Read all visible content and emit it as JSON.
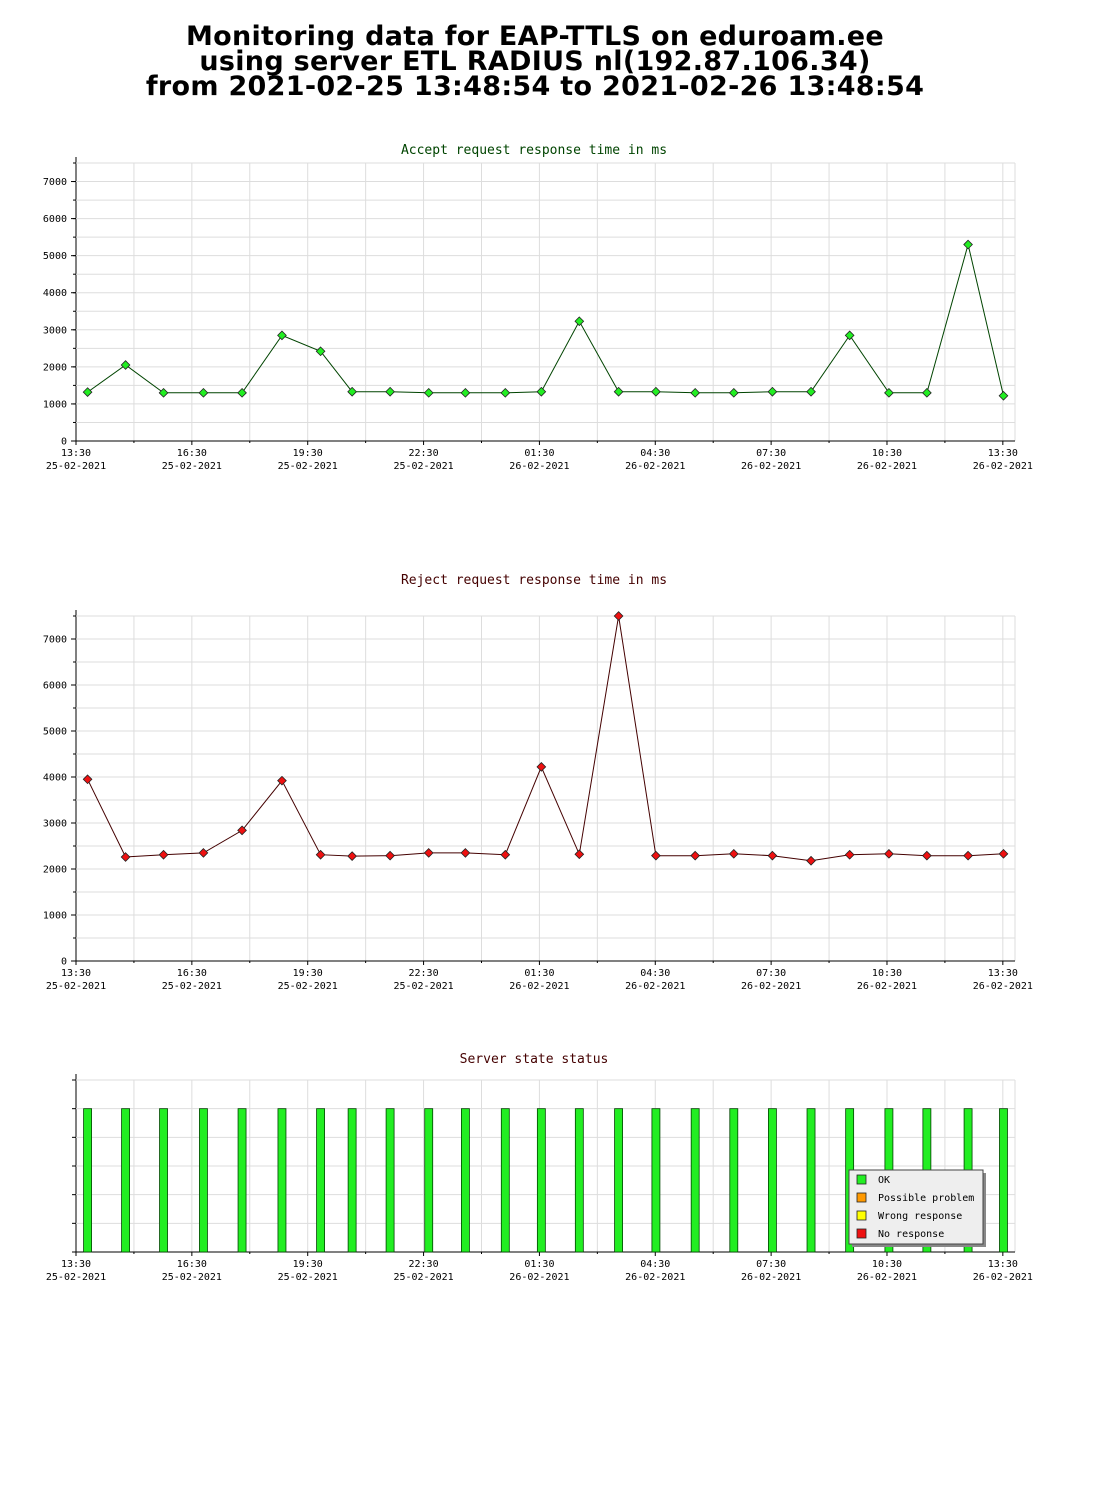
{
  "header": {
    "line1": "Monitoring data for EAP-TTLS on eduroam.ee",
    "line2": "using server ETL RADIUS nl(192.87.106.34)",
    "line3": "from 2021-02-25 13:48:54 to 2021-02-26 13:48:54"
  },
  "x_ticks": [
    {
      "time": "13:30",
      "date": "25-02-2021"
    },
    {
      "time": "16:30",
      "date": "25-02-2021"
    },
    {
      "time": "19:30",
      "date": "25-02-2021"
    },
    {
      "time": "22:30",
      "date": "25-02-2021"
    },
    {
      "time": "01:30",
      "date": "26-02-2021"
    },
    {
      "time": "04:30",
      "date": "26-02-2021"
    },
    {
      "time": "07:30",
      "date": "26-02-2021"
    },
    {
      "time": "10:30",
      "date": "26-02-2021"
    },
    {
      "time": "13:30",
      "date": "26-02-2021"
    }
  ],
  "chart_data": [
    {
      "type": "line",
      "title": "Accept request response time in ms",
      "title_color": "#004400",
      "line_color": "#004400",
      "marker_color": "#22ee22",
      "ylim": [
        0,
        7500
      ],
      "yticks": [
        0,
        1000,
        2000,
        3000,
        4000,
        5000,
        6000,
        7000
      ],
      "grid": true,
      "x": [
        "2021-02-25 13:48",
        "2021-02-25 14:47",
        "2021-02-25 15:46",
        "2021-02-25 16:48",
        "2021-02-25 17:48",
        "2021-02-25 18:50",
        "2021-02-25 19:50",
        "2021-02-25 20:39",
        "2021-02-25 21:38",
        "2021-02-25 22:38",
        "2021-02-25 23:35",
        "2021-02-26 00:37",
        "2021-02-26 01:33",
        "2021-02-26 02:32",
        "2021-02-26 03:33",
        "2021-02-26 04:31",
        "2021-02-26 05:32",
        "2021-02-26 06:32",
        "2021-02-26 07:32",
        "2021-02-26 08:32",
        "2021-02-26 09:32",
        "2021-02-26 10:33",
        "2021-02-26 11:32",
        "2021-02-26 12:36",
        "2021-02-26 13:31"
      ],
      "values": [
        1320,
        2050,
        1300,
        1300,
        1300,
        2850,
        2420,
        1330,
        1330,
        1300,
        1300,
        1300,
        1330,
        3230,
        1330,
        1330,
        1300,
        1300,
        1330,
        1330,
        2850,
        1300,
        1300,
        5300,
        1220
      ]
    },
    {
      "type": "line",
      "title": "Reject request response time in ms",
      "title_color": "#440000",
      "line_color": "#440000",
      "marker_color": "#ee1111",
      "ylim": [
        0,
        7500
      ],
      "yticks": [
        0,
        1000,
        2000,
        3000,
        4000,
        5000,
        6000,
        7000
      ],
      "grid": true,
      "x": [
        "2021-02-25 13:48",
        "2021-02-25 14:47",
        "2021-02-25 15:46",
        "2021-02-25 16:48",
        "2021-02-25 17:48",
        "2021-02-25 18:50",
        "2021-02-25 19:50",
        "2021-02-25 20:39",
        "2021-02-25 21:38",
        "2021-02-25 22:38",
        "2021-02-25 23:35",
        "2021-02-26 00:37",
        "2021-02-26 01:33",
        "2021-02-26 02:32",
        "2021-02-26 03:33",
        "2021-02-26 04:31",
        "2021-02-26 05:32",
        "2021-02-26 06:32",
        "2021-02-26 07:32",
        "2021-02-26 08:32",
        "2021-02-26 09:32",
        "2021-02-26 10:33",
        "2021-02-26 11:32",
        "2021-02-26 12:36",
        "2021-02-26 13:31"
      ],
      "values": [
        3950,
        2260,
        2310,
        2350,
        2840,
        3920,
        2310,
        2280,
        2290,
        2350,
        2350,
        2310,
        4220,
        2320,
        7500,
        2290,
        2290,
        2330,
        2290,
        2180,
        2310,
        2330,
        2290,
        2290,
        2330
      ]
    },
    {
      "type": "bar",
      "title": "Server state status",
      "title_color": "#440000",
      "grid": true,
      "x": [
        "2021-02-25 13:48",
        "2021-02-25 14:47",
        "2021-02-25 15:46",
        "2021-02-25 16:48",
        "2021-02-25 17:48",
        "2021-02-25 18:50",
        "2021-02-25 19:50",
        "2021-02-25 20:39",
        "2021-02-25 21:38",
        "2021-02-25 22:38",
        "2021-02-25 23:35",
        "2021-02-26 00:37",
        "2021-02-26 01:33",
        "2021-02-26 02:32",
        "2021-02-26 03:33",
        "2021-02-26 04:31",
        "2021-02-26 05:32",
        "2021-02-26 06:32",
        "2021-02-26 07:32",
        "2021-02-26 08:32",
        "2021-02-26 09:32",
        "2021-02-26 10:33",
        "2021-02-26 11:32",
        "2021-02-26 12:36",
        "2021-02-26 13:31"
      ],
      "states": [
        "OK",
        "OK",
        "OK",
        "OK",
        "OK",
        "OK",
        "OK",
        "OK",
        "OK",
        "OK",
        "OK",
        "OK",
        "OK",
        "OK",
        "OK",
        "OK",
        "OK",
        "OK",
        "OK",
        "OK",
        "OK",
        "OK",
        "OK",
        "OK",
        "OK"
      ],
      "legend_position": "bottom-right",
      "legend": [
        {
          "label": "OK",
          "color": "#22ee22"
        },
        {
          "label": "Possible problem",
          "color": "#ff9900"
        },
        {
          "label": "Wrong response",
          "color": "#ffff00"
        },
        {
          "label": "No response",
          "color": "#ee1111"
        }
      ]
    }
  ]
}
